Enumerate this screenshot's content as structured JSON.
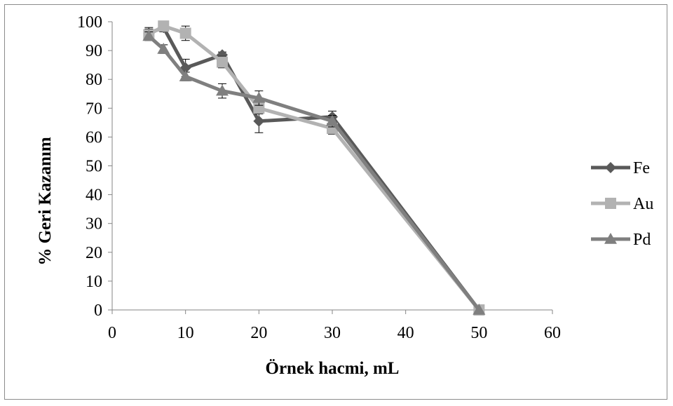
{
  "chart_data": {
    "type": "line",
    "xlabel": "Örnek hacmi,  mL",
    "ylabel": "% Geri Kazanım",
    "xlim": [
      0,
      60
    ],
    "ylim": [
      0,
      100
    ],
    "x_ticks": [
      "0",
      "10",
      "20",
      "30",
      "40",
      "50",
      "60"
    ],
    "y_ticks": [
      "0",
      "10",
      "20",
      "30",
      "40",
      "50",
      "60",
      "70",
      "80",
      "90",
      "100"
    ],
    "grid": false,
    "legend_position": "right",
    "series": [
      {
        "name": "Fe",
        "marker": "diamond",
        "color": "#595959",
        "x": [
          5,
          7,
          10,
          15,
          20,
          30,
          50
        ],
        "y": [
          96,
          98,
          84,
          88.5,
          65.5,
          67,
          0
        ],
        "err": [
          2,
          1.5,
          3,
          1,
          4,
          2,
          0
        ]
      },
      {
        "name": "Au",
        "marker": "square",
        "color": "#b2b2b2",
        "x": [
          5,
          7,
          10,
          15,
          20,
          30,
          50
        ],
        "y": [
          95.5,
          98.5,
          96,
          86,
          70,
          63,
          0
        ],
        "err": [
          2,
          1,
          2.5,
          2,
          2,
          2,
          0
        ]
      },
      {
        "name": "Pd",
        "marker": "triangle",
        "color": "#7f7f7f",
        "x": [
          5,
          7,
          10,
          15,
          20,
          30,
          50
        ],
        "y": [
          95,
          90.5,
          81,
          76,
          73.5,
          65.5,
          0
        ],
        "err": [
          1.5,
          1.5,
          1.5,
          2.5,
          2.5,
          2,
          0
        ]
      }
    ]
  }
}
